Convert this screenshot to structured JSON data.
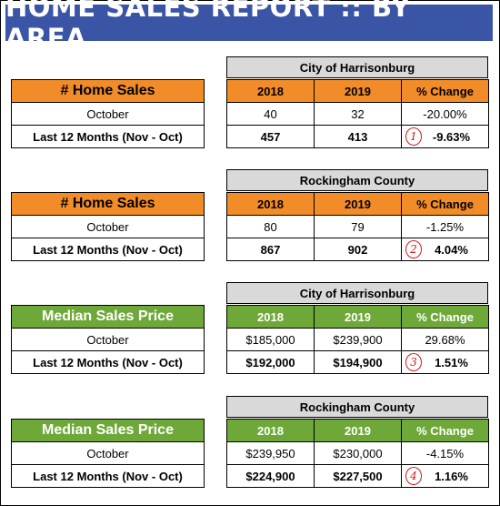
{
  "title": "HOME SALES REPORT  ::  BY AREA",
  "sections": [
    {
      "area": "City of Harrisonburg",
      "metric": "# Home Sales",
      "cols": [
        "2018",
        "2019",
        "% Change"
      ],
      "row1": {
        "label": "October",
        "y2018": "40",
        "y2019": "32",
        "change": "-20.00%"
      },
      "row2": {
        "label": "Last 12 Months (Nov - Oct)",
        "y2018": "457",
        "y2019": "413",
        "change": "-9.63%",
        "marker": "1"
      },
      "color": "#f28c28"
    },
    {
      "area": "Rockingham County",
      "metric": "# Home Sales",
      "cols": [
        "2018",
        "2019",
        "% Change"
      ],
      "row1": {
        "label": "October",
        "y2018": "80",
        "y2019": "79",
        "change": "-1.25%"
      },
      "row2": {
        "label": "Last 12 Months (Nov - Oct)",
        "y2018": "867",
        "y2019": "902",
        "change": "4.04%",
        "marker": "2"
      },
      "color": "#f28c28"
    },
    {
      "area": "City of Harrisonburg",
      "metric": "Median Sales Price",
      "cols": [
        "2018",
        "2019",
        "% Change"
      ],
      "row1": {
        "label": "October",
        "y2018": "$185,000",
        "y2019": "$239,900",
        "change": "29.68%"
      },
      "row2": {
        "label": "Last 12 Months (Nov - Oct)",
        "y2018": "$192,000",
        "y2019": "$194,900",
        "change": "1.51%",
        "marker": "3"
      },
      "color": "#6ea838"
    },
    {
      "area": "Rockingham County",
      "metric": "Median Sales Price",
      "cols": [
        "2018",
        "2019",
        "% Change"
      ],
      "row1": {
        "label": "October",
        "y2018": "$239,950",
        "y2019": "$230,000",
        "change": "-4.15%"
      },
      "row2": {
        "label": "Last 12 Months (Nov - Oct)",
        "y2018": "$224,900",
        "y2019": "$227,500",
        "change": "1.16%",
        "marker": "4"
      },
      "color": "#6ea838"
    }
  ]
}
